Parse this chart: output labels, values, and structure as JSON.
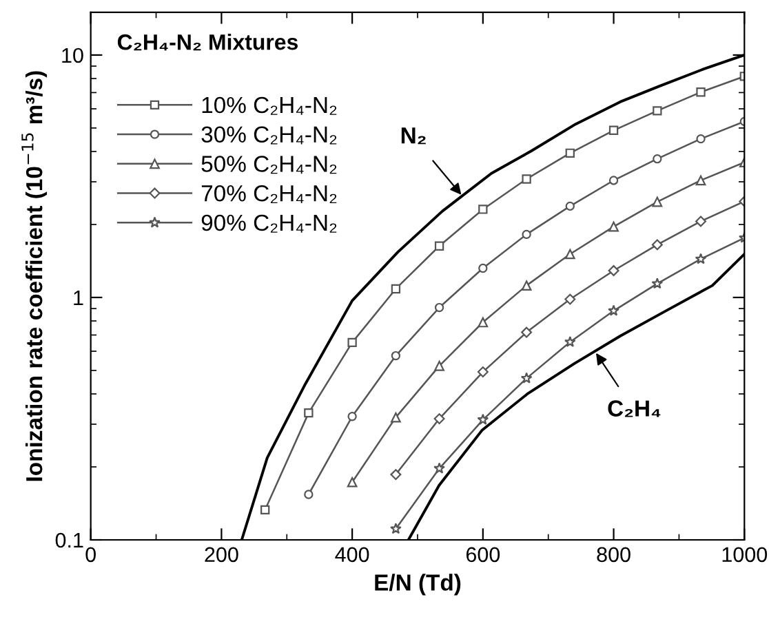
{
  "chart_data": {
    "type": "line",
    "title": "C₂H₄-N₂ Mixtures",
    "xlabel": "E/N (Td)",
    "ylabel": "Ionization rate coefficient (10$^{−15}$ m³/s)",
    "xlim": [
      0,
      1000
    ],
    "xticks": [
      0,
      200,
      400,
      600,
      800,
      1000
    ],
    "ylim": [
      0.1,
      15
    ],
    "yticks": [
      0.1,
      1,
      10
    ],
    "log": "y",
    "legend": "top left",
    "grid": false,
    "series": [
      {
        "color": "#000000",
        "marker": "none",
        "x": [
          231,
          270,
          328,
          400,
          470,
          538,
          613,
          674,
          742,
          810,
          870,
          938,
          1000
        ],
        "values": [
          0.1,
          0.218,
          0.438,
          0.97,
          1.54,
          2.27,
          3.25,
          4.02,
          5.19,
          6.41,
          7.44,
          8.76,
          10
        ]
      },
      {
        "name": "10% C₂H₄-N₂",
        "color": "#555555",
        "marker": "square",
        "x": [
          266.7,
          333.3,
          400,
          466.7,
          533.3,
          600,
          666.7,
          733.3,
          800,
          866.7,
          933.3,
          1000
        ],
        "values": [
          0.133,
          0.334,
          0.652,
          1.085,
          1.63,
          2.31,
          3.08,
          3.94,
          4.89,
          5.89,
          7.03,
          8.17
        ]
      },
      {
        "name": "30% C₂H₄-N₂",
        "color": "#555555",
        "marker": "circle",
        "x": [
          333.3,
          400,
          466.7,
          533.3,
          600,
          666.7,
          733.3,
          800,
          866.7,
          933.3,
          1000
        ],
        "values": [
          0.154,
          0.323,
          0.575,
          0.909,
          1.32,
          1.82,
          2.38,
          3.04,
          3.73,
          4.51,
          5.32
        ]
      },
      {
        "name": "50% C₂H₄-N₂",
        "color": "#555555",
        "marker": "triangle",
        "x": [
          400,
          466.7,
          533.3,
          600,
          666.7,
          733.3,
          800,
          866.7,
          933.3,
          1000
        ],
        "values": [
          0.173,
          0.32,
          0.522,
          0.79,
          1.12,
          1.51,
          1.96,
          2.48,
          3.04,
          3.61
        ]
      },
      {
        "name": "70% C₂H₄-N₂",
        "color": "#555555",
        "marker": "diamond",
        "x": [
          466.7,
          533.3,
          600,
          666.7,
          733.3,
          800,
          866.7,
          933.3,
          1000
        ],
        "values": [
          0.186,
          0.316,
          0.493,
          0.718,
          0.983,
          1.29,
          1.65,
          2.06,
          2.49
        ]
      },
      {
        "name": "90% C₂H₄-N₂",
        "color": "#555555",
        "marker": "star",
        "x": [
          466.7,
          533.3,
          600,
          666.7,
          733.3,
          800,
          866.7,
          933.3,
          1000
        ],
        "values": [
          0.111,
          0.197,
          0.313,
          0.464,
          0.655,
          0.881,
          1.14,
          1.44,
          1.76
        ]
      },
      {
        "color": "#000000",
        "marker": "none",
        "x": [
          486,
          533,
          599,
          669,
          740,
          810,
          880,
          951,
          1000
        ],
        "values": [
          0.1,
          0.168,
          0.284,
          0.402,
          0.534,
          0.693,
          0.881,
          1.12,
          1.51
        ]
      }
    ],
    "annotations": [
      {
        "text": "N₂",
        "x": 567,
        "y": 2.65
      },
      {
        "text": "C₂H₄",
        "x": 773,
        "y": 0.59
      }
    ]
  }
}
